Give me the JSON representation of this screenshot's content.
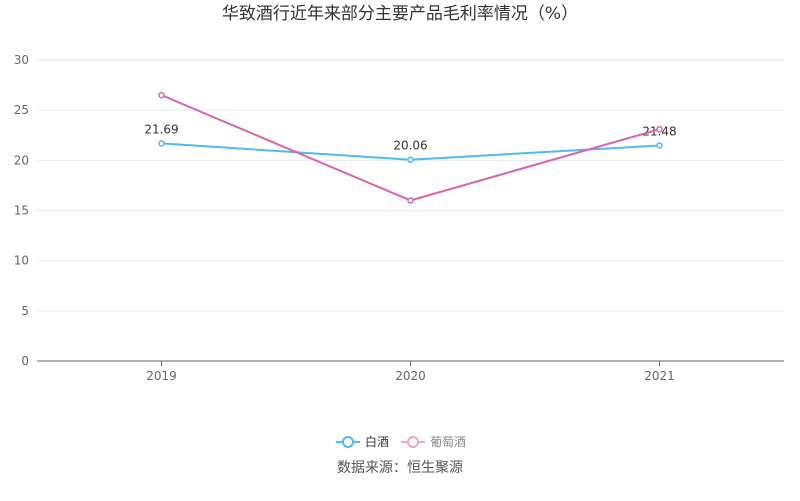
{
  "chart_data": {
    "type": "line",
    "title": "华致酒行近年来部分主要产品毛利率情况（%）",
    "categories": [
      "2019",
      "2020",
      "2021"
    ],
    "ylim": [
      0,
      30
    ],
    "yticks": [
      0,
      5,
      10,
      15,
      20,
      25,
      30
    ],
    "grid": true,
    "legend_position": "bottom",
    "series": [
      {
        "name": "白酒",
        "values": [
          21.69,
          20.06,
          21.48
        ],
        "color": "#4fb9f4",
        "labels": [
          "21.69",
          "20.06",
          "21.48"
        ]
      },
      {
        "name": "葡萄酒",
        "values": [
          26.5,
          16.0,
          23.1
        ],
        "color": "#d864ad",
        "legend_color": "#eaa6d2"
      }
    ],
    "source": "数据来源：恒生聚源"
  }
}
